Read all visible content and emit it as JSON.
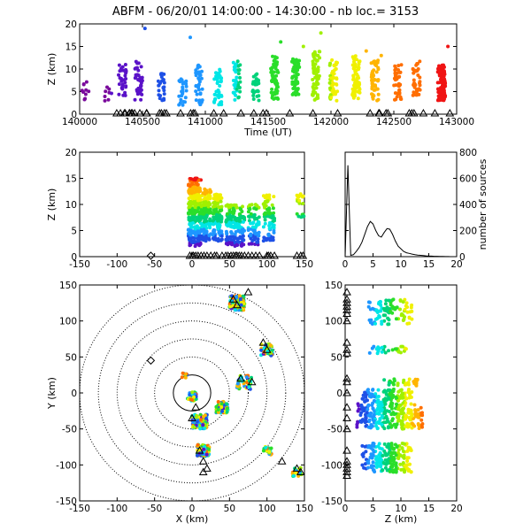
{
  "figure": {
    "title": "ABFM - 06/20/01 14:00:00 - 14:30:00 - nb loc.=   3153",
    "colors": {
      "ramp": [
        "#000000",
        "#7a0a9c",
        "#5a12c8",
        "#1e50e6",
        "#1e96ff",
        "#00e6e6",
        "#00d27a",
        "#2ade2a",
        "#a0f000",
        "#f0f000",
        "#ffb400",
        "#ff6e00",
        "#f01414"
      ],
      "station_marker": "#000000"
    },
    "markers": {
      "station": "triangle",
      "center": "diamond"
    }
  },
  "chart_data": [
    {
      "id": "time_height",
      "type": "scatter",
      "xlabel": "Time (UT)",
      "ylabel": "Z (km)",
      "xlim": [
        140000,
        143000
      ],
      "ylim": [
        0,
        20
      ],
      "xticks": [
        "140000",
        "140500",
        "141000",
        "141500",
        "142000",
        "142500",
        "143000"
      ],
      "yticks": [
        "0",
        "5",
        "10",
        "15",
        "20"
      ],
      "color_by": "time",
      "clusters": [
        {
          "x": 140050,
          "y_range": [
            3,
            8
          ],
          "count": 10
        },
        {
          "x": 140230,
          "y_range": [
            2,
            7
          ],
          "count": 8
        },
        {
          "x": 140340,
          "y_range": [
            4,
            11
          ],
          "count": 30
        },
        {
          "x": 140470,
          "y_range": [
            3,
            12
          ],
          "count": 40
        },
        {
          "x": 140650,
          "y_range": [
            3,
            9
          ],
          "count": 25
        },
        {
          "x": 140820,
          "y_range": [
            2,
            8
          ],
          "count": 25
        },
        {
          "x": 140950,
          "y_range": [
            2,
            11
          ],
          "count": 40
        },
        {
          "x": 141100,
          "y_range": [
            2,
            10
          ],
          "count": 40
        },
        {
          "x": 141250,
          "y_range": [
            3,
            12
          ],
          "count": 40
        },
        {
          "x": 141400,
          "y_range": [
            3,
            9
          ],
          "count": 25
        },
        {
          "x": 141550,
          "y_range": [
            3,
            13
          ],
          "count": 60
        },
        {
          "x": 141720,
          "y_range": [
            4,
            13
          ],
          "count": 60
        },
        {
          "x": 141880,
          "y_range": [
            3,
            14
          ],
          "count": 70
        },
        {
          "x": 142020,
          "y_range": [
            3,
            12
          ],
          "count": 60
        },
        {
          "x": 142200,
          "y_range": [
            3,
            13
          ],
          "count": 70
        },
        {
          "x": 142350,
          "y_range": [
            3,
            12
          ],
          "count": 50
        },
        {
          "x": 142530,
          "y_range": [
            3,
            11
          ],
          "count": 40
        },
        {
          "x": 142680,
          "y_range": [
            4,
            12
          ],
          "count": 40
        },
        {
          "x": 142880,
          "y_range": [
            3,
            11
          ],
          "count": 90
        }
      ],
      "isolated_points": [
        {
          "x": 140520,
          "y": 19
        },
        {
          "x": 140880,
          "y": 17
        },
        {
          "x": 141600,
          "y": 16
        },
        {
          "x": 141780,
          "y": 15
        },
        {
          "x": 142280,
          "y": 14
        },
        {
          "x": 141920,
          "y": 18
        },
        {
          "x": 142400,
          "y": 13
        },
        {
          "x": 142930,
          "y": 15
        }
      ],
      "ground_markers": 40
    },
    {
      "id": "x_height",
      "type": "scatter",
      "xlabel": "",
      "ylabel": "Z (km)",
      "xlim": [
        -150,
        150
      ],
      "ylim": [
        0,
        20
      ],
      "xticks": [
        "-150",
        "-100",
        "-50",
        "0",
        "50",
        "100",
        "150"
      ],
      "yticks": [
        "0",
        "5",
        "10",
        "15",
        "20"
      ],
      "clusters": [
        {
          "x_range": [
            -5,
            12
          ],
          "y_range": [
            2,
            15
          ],
          "count": 300
        },
        {
          "x_range": [
            12,
            25
          ],
          "y_range": [
            3,
            13
          ],
          "count": 150
        },
        {
          "x_range": [
            28,
            40
          ],
          "y_range": [
            3,
            12
          ],
          "count": 130
        },
        {
          "x_range": [
            45,
            70
          ],
          "y_range": [
            2,
            10
          ],
          "count": 160
        },
        {
          "x_range": [
            75,
            90
          ],
          "y_range": [
            2,
            10
          ],
          "count": 80
        },
        {
          "x_range": [
            95,
            110
          ],
          "y_range": [
            3,
            12
          ],
          "count": 80
        },
        {
          "x_range": [
            140,
            150
          ],
          "y_range": [
            7,
            12
          ],
          "count": 20
        }
      ],
      "center_marker_x": -55,
      "station_x": [
        -3,
        0,
        2,
        5,
        8,
        12,
        16,
        20,
        25,
        30,
        33,
        40,
        45,
        48,
        52,
        55,
        58,
        60,
        63,
        66,
        70,
        75,
        80,
        85,
        90,
        100,
        102,
        105,
        110,
        140,
        145,
        148
      ]
    },
    {
      "id": "height_histogram",
      "type": "line",
      "xlabel": "",
      "ylabel": "number of sources",
      "xlim": [
        0,
        20
      ],
      "ylim": [
        0,
        800
      ],
      "xticks": [
        "0",
        "5",
        "10",
        "15",
        "20"
      ],
      "yticks": [
        "0",
        "200",
        "400",
        "600",
        "800"
      ],
      "x": [
        0.0,
        0.5,
        1.0,
        1.5,
        2.0,
        2.5,
        3.0,
        3.5,
        4.0,
        4.5,
        5.0,
        5.5,
        6.0,
        6.5,
        7.0,
        7.5,
        8.0,
        8.5,
        9.0,
        9.5,
        10.0,
        10.5,
        11.0,
        11.5,
        12.0,
        12.5,
        13.0,
        13.5,
        14.0,
        14.5,
        15.0,
        15.5,
        16.0,
        16.5,
        17.0,
        17.5,
        18.0,
        18.5,
        19.0,
        19.5,
        20.0
      ],
      "values": [
        0,
        700,
        10,
        15,
        40,
        70,
        110,
        170,
        230,
        270,
        250,
        200,
        160,
        150,
        185,
        215,
        210,
        170,
        120,
        80,
        60,
        40,
        30,
        25,
        20,
        15,
        12,
        10,
        8,
        6,
        5,
        4,
        3,
        3,
        2,
        2,
        1,
        1,
        0,
        0,
        0
      ]
    },
    {
      "id": "plan_view",
      "type": "scatter",
      "xlabel": "X (km)",
      "ylabel": "Y (km)",
      "xlim": [
        -150,
        150
      ],
      "ylim": [
        -150,
        150
      ],
      "xticks": [
        "-150",
        "-100",
        "-50",
        "0",
        "50",
        "100",
        "150"
      ],
      "yticks": [
        "-150",
        "-100",
        "-50",
        "0",
        "50",
        "100",
        "150"
      ],
      "range_rings_km": [
        25,
        50,
        75,
        100,
        125,
        150
      ],
      "center_marker": {
        "x": -55,
        "y": 45
      },
      "clusters": [
        {
          "x": 60,
          "y": 125,
          "spread": 10,
          "count": 120
        },
        {
          "x": 100,
          "y": 60,
          "spread": 8,
          "count": 40
        },
        {
          "x": 70,
          "y": 15,
          "spread": 10,
          "count": 50
        },
        {
          "x": 0,
          "y": -5,
          "spread": 6,
          "count": 30
        },
        {
          "x": 10,
          "y": -40,
          "spread": 10,
          "count": 130
        },
        {
          "x": 40,
          "y": -20,
          "spread": 8,
          "count": 70
        },
        {
          "x": 15,
          "y": -80,
          "spread": 8,
          "count": 120
        },
        {
          "x": 100,
          "y": -80,
          "spread": 6,
          "count": 20
        },
        {
          "x": 140,
          "y": -110,
          "spread": 6,
          "count": 20
        },
        {
          "x": -10,
          "y": 25,
          "spread": 4,
          "count": 8
        }
      ],
      "stations": [
        {
          "x": 55,
          "y": 130
        },
        {
          "x": 60,
          "y": 122
        },
        {
          "x": 75,
          "y": 140
        },
        {
          "x": 95,
          "y": 70
        },
        {
          "x": 100,
          "y": 60
        },
        {
          "x": 65,
          "y": 20
        },
        {
          "x": 80,
          "y": 15
        },
        {
          "x": 5,
          "y": -20
        },
        {
          "x": 0,
          "y": -35
        },
        {
          "x": 10,
          "y": -80
        },
        {
          "x": 15,
          "y": -95
        },
        {
          "x": 20,
          "y": -105
        },
        {
          "x": 15,
          "y": -110
        },
        {
          "x": 120,
          "y": -95
        },
        {
          "x": 145,
          "y": -110
        },
        {
          "x": 140,
          "y": -105
        }
      ]
    },
    {
      "id": "height_y",
      "type": "scatter",
      "xlabel": "Z (km)",
      "ylabel": "",
      "xlim": [
        0,
        20
      ],
      "ylim": [
        -150,
        150
      ],
      "xticks": [
        "0",
        "5",
        "10",
        "15",
        "20"
      ],
      "yticks": [
        "-150",
        "-100",
        "-50",
        "0",
        "50",
        "100",
        "150"
      ],
      "clusters": [
        {
          "z_range": [
            4,
            12
          ],
          "y_range": [
            95,
            130
          ],
          "count": 90
        },
        {
          "z_range": [
            4,
            11
          ],
          "y_range": [
            55,
            65
          ],
          "count": 30
        },
        {
          "z_range": [
            7,
            13
          ],
          "y_range": [
            10,
            20
          ],
          "count": 30
        },
        {
          "z_range": [
            3,
            12
          ],
          "y_range": [
            -15,
            5
          ],
          "count": 110
        },
        {
          "z_range": [
            2,
            14
          ],
          "y_range": [
            -50,
            -15
          ],
          "count": 220
        },
        {
          "z_range": [
            3,
            12
          ],
          "y_range": [
            -110,
            -70
          ],
          "count": 200
        }
      ],
      "station_y": [
        140,
        130,
        125,
        120,
        115,
        110,
        100,
        70,
        60,
        55,
        20,
        15,
        0,
        -20,
        -35,
        -50,
        -80,
        -95,
        -100,
        -105,
        -110,
        -115
      ]
    }
  ]
}
